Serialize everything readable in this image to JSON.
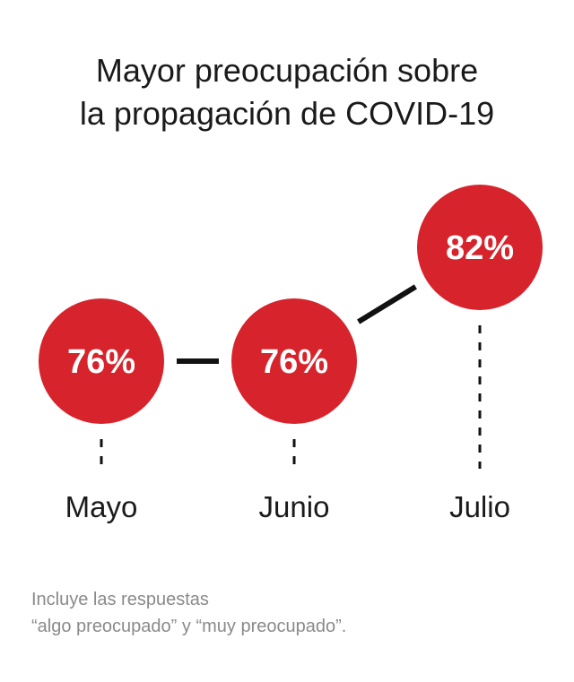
{
  "colors": {
    "circle": "#d7232b",
    "connector": "#111111",
    "value_text": "#ffffff",
    "label_text": "#1a1a1a",
    "note_text": "#8a8a8a"
  },
  "title": {
    "line1": "Mayor preocupación sobre",
    "line2": "la propagación de COVID-19"
  },
  "note": {
    "line1": "Incluye las respuestas",
    "line2": "“algo preocupado” y “muy preocupado”."
  },
  "chart_data": {
    "type": "line",
    "categories": [
      "Mayo",
      "Junio",
      "Julio"
    ],
    "values": [
      76,
      76,
      82
    ],
    "value_labels": [
      "76%",
      "76%",
      "82%"
    ],
    "unit": "%",
    "grid": false,
    "legend": "none"
  }
}
